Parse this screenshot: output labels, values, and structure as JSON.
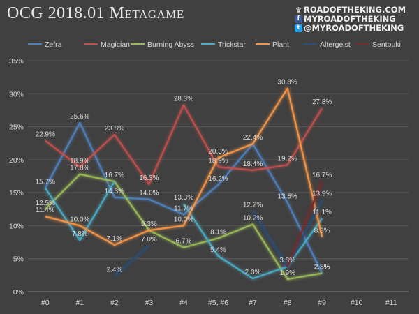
{
  "title": "OCG 2018.01 Metagame",
  "brand": {
    "website": "ROADOFTHEKING.COM",
    "facebook": "MYROADOFTHEKING",
    "twitter": "@MYROADOFTHEKING",
    "icons": [
      "crown-icon",
      "facebook-icon",
      "twitter-icon"
    ]
  },
  "chart_data": {
    "type": "line",
    "categories": [
      "#0",
      "#1",
      "#2",
      "#3",
      "#4",
      "#5, #6",
      "#7",
      "#8",
      "#9",
      "#10",
      "#11"
    ],
    "ylim": [
      0,
      35
    ],
    "yticks": [
      "0%",
      "5%",
      "10%",
      "15%",
      "20%",
      "25%",
      "30%",
      "35%"
    ],
    "grid": true,
    "legend_position": "top",
    "series": [
      {
        "name": "Zefra",
        "color": "#4f81bd",
        "values": [
          15.7,
          25.6,
          14.3,
          14.0,
          11.7,
          16.2,
          22.4,
          13.5,
          2.8,
          null,
          null
        ],
        "labels": [
          "15.7%",
          "25.6%",
          "14.3%",
          "14.0%",
          "11.7%",
          "16.2%",
          "22.4%",
          "13.5%",
          "2.8%",
          null,
          null
        ]
      },
      {
        "name": "Magician",
        "color": "#c0504d",
        "values": [
          22.9,
          18.9,
          23.8,
          16.3,
          28.3,
          18.9,
          18.4,
          19.2,
          27.8,
          null,
          null
        ],
        "labels": [
          "22.9%",
          "18.9%",
          "23.8%",
          "16.3%",
          "28.3%",
          "18.9%",
          "18.4%",
          "19.2%",
          "27.8%",
          null,
          null
        ]
      },
      {
        "name": "Burning Abyss",
        "color": "#9bbb59",
        "values": [
          12.5,
          17.8,
          16.7,
          9.3,
          6.7,
          8.1,
          10.2,
          1.9,
          2.8,
          null,
          null
        ],
        "labels": [
          "12.5%",
          "17.8%",
          "16.7%",
          "9.3%",
          "6.7%",
          "8.1%",
          "10.2%",
          "1.9%",
          "2.8%",
          null,
          null
        ]
      },
      {
        "name": "Trickstar",
        "color": "#4bacc6",
        "values": [
          15.7,
          7.8,
          16.7,
          null,
          13.3,
          5.4,
          2.0,
          3.8,
          11.1,
          null,
          null
        ],
        "labels": [
          null,
          "7.8%",
          null,
          null,
          "13.3%",
          "5.4%",
          "2.0%",
          "3.8%",
          "11.1%",
          null,
          null
        ]
      },
      {
        "name": "Plant",
        "color": "#f79646",
        "values": [
          11.4,
          10.0,
          7.1,
          9.3,
          10.0,
          20.3,
          22.4,
          30.8,
          8.3,
          null,
          null
        ],
        "labels": [
          "11.4%",
          "10.0%",
          "7.1%",
          null,
          "10.0%",
          "20.3%",
          null,
          "30.8%",
          "8.3%",
          null,
          null
        ]
      },
      {
        "name": "Altergeist",
        "color": "#2c4d75",
        "values": [
          null,
          null,
          2.4,
          7.0,
          null,
          null,
          12.2,
          3.8,
          13.9,
          null,
          null
        ],
        "labels": [
          null,
          null,
          "2.4%",
          "7.0%",
          null,
          null,
          "12.2%",
          null,
          "13.9%",
          null,
          null
        ]
      },
      {
        "name": "Sentouki",
        "color": "#772c2a",
        "values": [
          null,
          null,
          null,
          null,
          null,
          null,
          null,
          3.8,
          16.7,
          null,
          null
        ],
        "labels": [
          null,
          null,
          null,
          null,
          null,
          null,
          null,
          null,
          "16.7%",
          null,
          null
        ]
      }
    ]
  }
}
